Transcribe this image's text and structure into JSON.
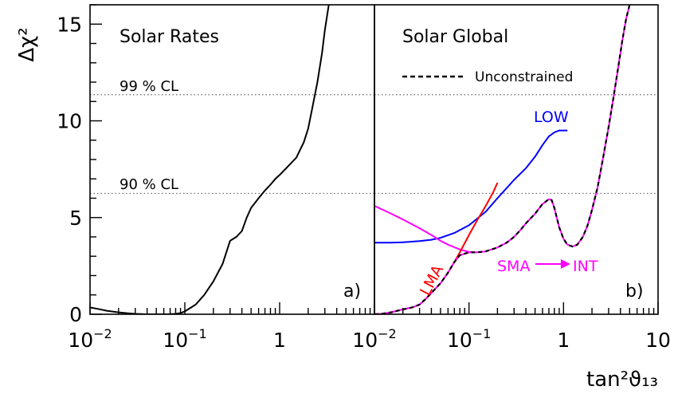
{
  "chart_data": [
    {
      "type": "line",
      "title": "Solar Rates",
      "xlabel": "tan²ϑ₁₃",
      "ylabel": "Δχ²",
      "xscale": "log",
      "xlim": [
        0.01,
        10
      ],
      "ylim": [
        0,
        16
      ],
      "x_ticks": [
        {
          "value": 0.01,
          "base": "10",
          "exp": "−2"
        },
        {
          "value": 0.1,
          "base": "10",
          "exp": "−1"
        },
        {
          "value": 1,
          "base": "1",
          "exp": ""
        }
      ],
      "y_ticks": [
        {
          "value": 0,
          "label": "0"
        },
        {
          "value": 5,
          "label": "5"
        },
        {
          "value": 10,
          "label": "10"
        },
        {
          "value": 15,
          "label": "15"
        }
      ],
      "reference_lines": [
        {
          "label": "99 % CL",
          "y": 11.35
        },
        {
          "label": "90 % CL",
          "y": 6.25
        }
      ],
      "panel_tag": "a)",
      "series": [
        {
          "color": "#000000",
          "dash": "solid",
          "x": [
            0.01,
            0.012,
            0.015,
            0.02,
            0.025,
            0.03,
            0.04,
            0.05,
            0.065,
            0.08,
            0.09,
            0.1,
            0.13,
            0.16,
            0.2,
            0.25,
            0.3,
            0.35,
            0.4,
            0.45,
            0.5,
            0.6,
            0.7,
            0.8,
            0.9,
            1.0,
            1.2,
            1.5,
            1.8,
            2.0,
            2.2,
            2.5,
            2.8,
            3.0,
            3.3
          ],
          "y": [
            0.35,
            0.28,
            0.18,
            0.1,
            0.05,
            0.02,
            0.0,
            0.0,
            0.0,
            0.02,
            0.06,
            0.15,
            0.5,
            1.0,
            1.7,
            2.6,
            3.8,
            4.0,
            4.3,
            5.0,
            5.5,
            6.0,
            6.4,
            6.7,
            7.0,
            7.2,
            7.6,
            8.1,
            8.9,
            9.6,
            10.6,
            12.0,
            13.5,
            14.7,
            16.0
          ]
        }
      ]
    },
    {
      "type": "line",
      "title": "Solar Global",
      "xlabel": "tan²ϑ₁₃",
      "ylabel": "Δχ²",
      "xscale": "log",
      "xlim": [
        0.01,
        10
      ],
      "ylim": [
        0,
        16
      ],
      "x_ticks": [
        {
          "value": 0.01,
          "base": "10",
          "exp": "−2"
        },
        {
          "value": 0.1,
          "base": "10",
          "exp": "−1"
        },
        {
          "value": 1,
          "base": "1",
          "exp": ""
        },
        {
          "value": 10,
          "base": "10",
          "exp": ""
        }
      ],
      "panel_tag": "b)",
      "legend": [
        {
          "label": "Unconstrained",
          "dash": "dashed",
          "color": "#000000"
        }
      ],
      "annotations": [
        {
          "text": "LOW",
          "color": "#0000ff",
          "x": 0.7,
          "y": 9.9
        },
        {
          "text": "SMA",
          "color": "#ff00ff",
          "x": 0.28,
          "y": 2.85
        },
        {
          "text": "INT",
          "color": "#ff00ff",
          "x": 3.1,
          "y": 2.85
        },
        {
          "text": "LMA",
          "color": "#ff0000",
          "x": 0.045,
          "y": 1.55
        }
      ],
      "series": [
        {
          "name": "LOW",
          "color": "#0000ff",
          "dash": "solid",
          "x": [
            0.01,
            0.015,
            0.02,
            0.03,
            0.04,
            0.05,
            0.07,
            0.1,
            0.15,
            0.2,
            0.3,
            0.4,
            0.5,
            0.6,
            0.7,
            0.8,
            0.9,
            1.0,
            1.1
          ],
          "y": [
            3.7,
            3.7,
            3.72,
            3.78,
            3.85,
            3.95,
            4.2,
            4.6,
            5.3,
            6.0,
            6.95,
            7.55,
            8.15,
            8.75,
            9.2,
            9.4,
            9.5,
            9.5,
            9.5
          ]
        },
        {
          "name": "SMA",
          "color": "#ff00ff",
          "dash": "solid",
          "x": [
            0.01,
            0.015,
            0.02,
            0.03,
            0.04,
            0.05,
            0.06,
            0.08,
            0.1,
            0.12
          ],
          "y": [
            5.6,
            5.2,
            4.9,
            4.45,
            4.1,
            3.8,
            3.6,
            3.35,
            3.22,
            3.2
          ]
        },
        {
          "name": "LMA",
          "color": "#ff0000",
          "dash": "solid",
          "x": [
            0.01,
            0.012,
            0.015,
            0.02,
            0.025,
            0.03,
            0.035,
            0.04,
            0.05,
            0.06,
            0.07,
            0.08,
            0.1,
            0.12,
            0.15,
            0.18,
            0.2
          ],
          "y": [
            0.0,
            0.02,
            0.1,
            0.25,
            0.35,
            0.5,
            0.8,
            1.1,
            1.6,
            2.15,
            2.7,
            3.2,
            4.1,
            4.8,
            5.6,
            6.3,
            6.8
          ]
        },
        {
          "name": "Unconstrained",
          "color": "#ff00ff",
          "overlay_color": "#000000",
          "dash": "dashed",
          "x": [
            0.01,
            0.012,
            0.015,
            0.02,
            0.025,
            0.03,
            0.035,
            0.04,
            0.05,
            0.06,
            0.07,
            0.08,
            0.1,
            0.12,
            0.15,
            0.2,
            0.25,
            0.3,
            0.35,
            0.4,
            0.5,
            0.6,
            0.7,
            0.75,
            0.8,
            0.9,
            1.0,
            1.1,
            1.25,
            1.4,
            1.6,
            1.8,
            2.0,
            2.3,
            2.6,
            3.0,
            3.4,
            3.8,
            4.2,
            4.6,
            5.0
          ],
          "y": [
            0.0,
            0.02,
            0.1,
            0.25,
            0.35,
            0.5,
            0.8,
            1.1,
            1.6,
            2.15,
            2.7,
            3.05,
            3.2,
            3.2,
            3.25,
            3.45,
            3.7,
            4.0,
            4.35,
            4.7,
            5.2,
            5.7,
            5.95,
            5.9,
            5.5,
            4.5,
            3.9,
            3.6,
            3.5,
            3.6,
            4.0,
            4.6,
            5.4,
            6.6,
            8.0,
            9.7,
            11.3,
            12.8,
            14.2,
            15.3,
            16.0
          ]
        }
      ]
    }
  ]
}
